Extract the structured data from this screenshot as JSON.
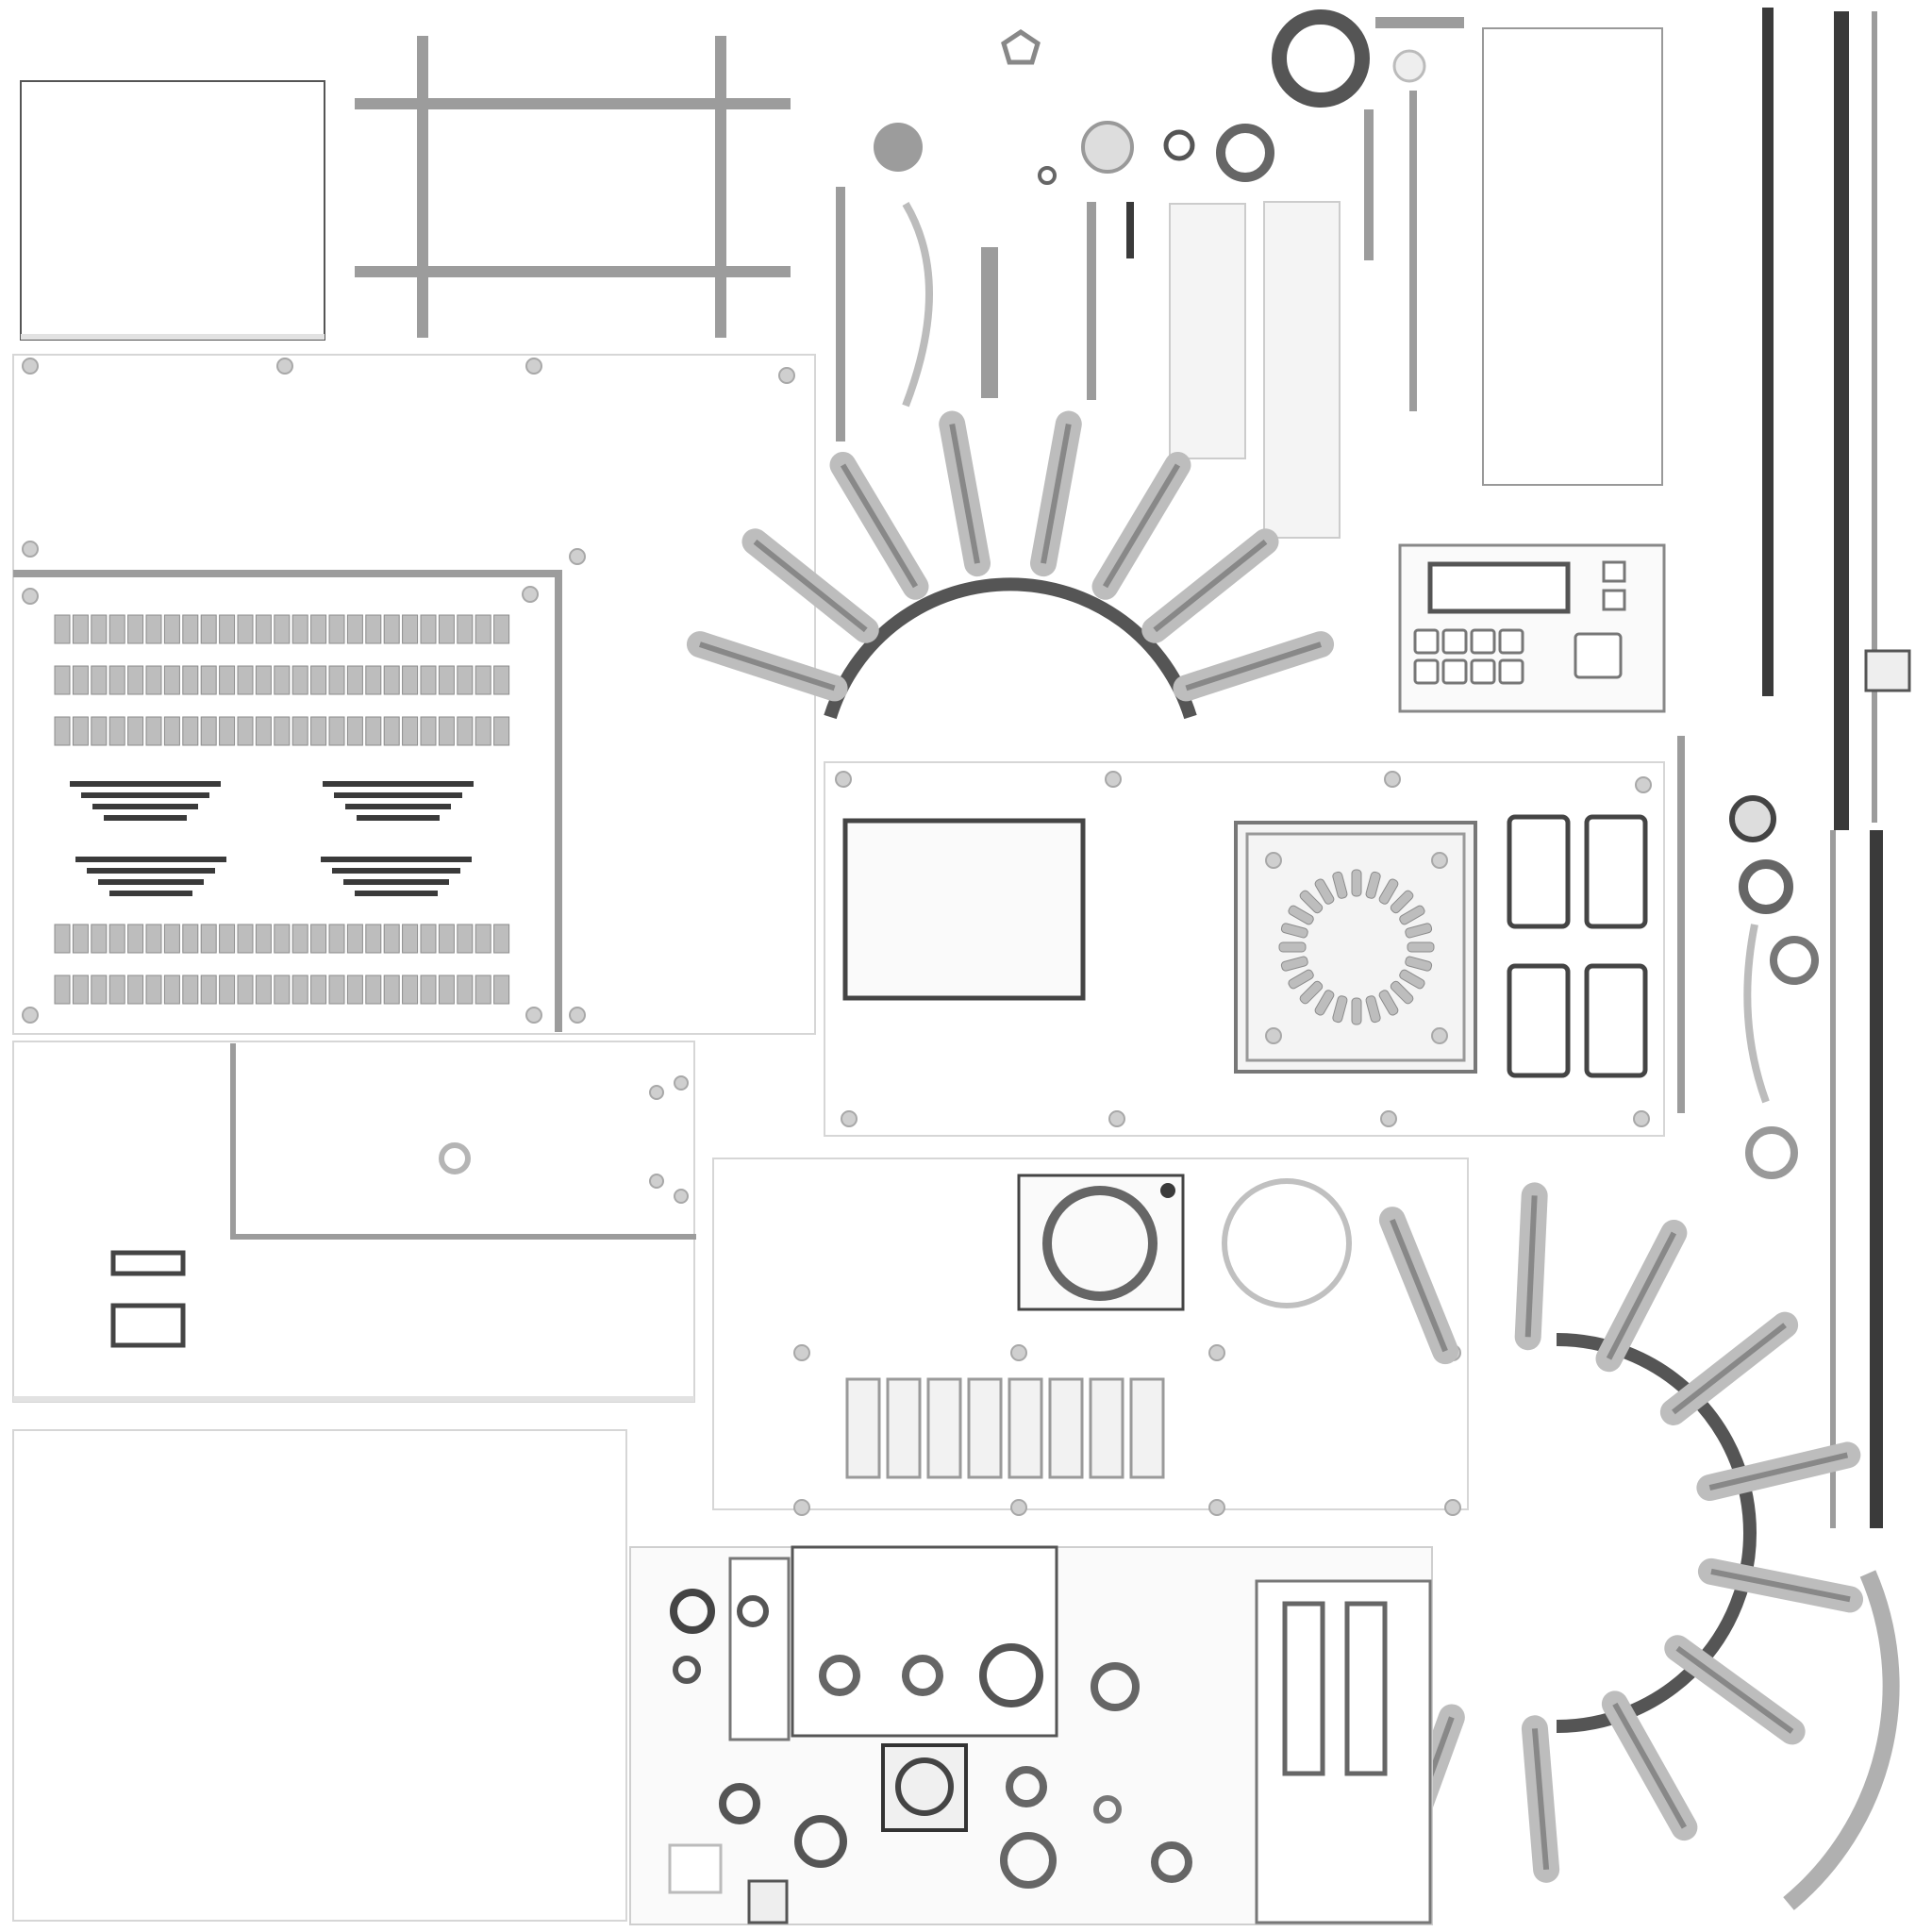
{
  "image": {
    "kind": "texture-atlas",
    "background_color": "#ffffff",
    "shade_dark": "#3a3a3a",
    "shade_mid": "#9c9c9c",
    "shade_light": "#e2e2e2"
  },
  "text_labels": [],
  "counts": {
    "fins_top_fan": 8,
    "fins_side_fan": 10,
    "vent_rows_upper": 3,
    "vent_rows_lower": 2,
    "stepped_grilles": 4,
    "switch_rectangles": 4,
    "rib_slots": 8,
    "keypad_buttons": 8
  }
}
